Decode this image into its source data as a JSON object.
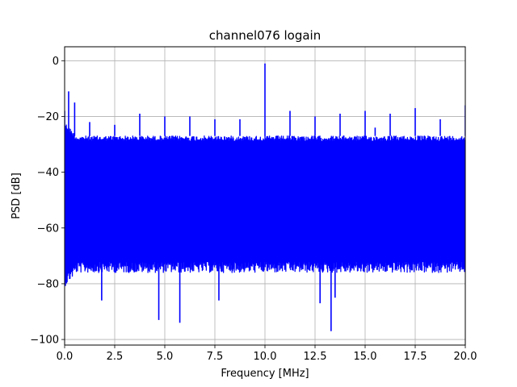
{
  "chart_data": {
    "type": "line",
    "title": "channel076 logain",
    "xlabel": "Frequency [MHz]",
    "ylabel": "PSD [dB]",
    "xlim": [
      0,
      20
    ],
    "ylim": [
      -102,
      5
    ],
    "grid": true,
    "legend": "none",
    "xticks": [
      0,
      2.5,
      5,
      7.5,
      10,
      12.5,
      15,
      17.5,
      20
    ],
    "xtick_labels": [
      "0.0",
      "2.5",
      "5.0",
      "7.5",
      "10.0",
      "12.5",
      "15.0",
      "17.5",
      "20.0"
    ],
    "yticks": [
      0,
      -20,
      -40,
      -60,
      -80,
      -100
    ],
    "ytick_labels": [
      "0",
      "−20",
      "−40",
      "−60",
      "−80",
      "−100"
    ],
    "series": [
      {
        "color": "#0000ff",
        "noise_floor": {
          "upper_envelope_db": -27,
          "lower_envelope_db": -72,
          "band_top_near_zero_db": -22,
          "band_bottom_near_zero_db": -77
        },
        "spurs": [
          {
            "x": 0.0,
            "y": -18
          },
          {
            "x": 0.2,
            "y": -11
          },
          {
            "x": 0.5,
            "y": -15
          },
          {
            "x": 1.25,
            "y": -22
          },
          {
            "x": 2.5,
            "y": -23
          },
          {
            "x": 3.75,
            "y": -19
          },
          {
            "x": 5.0,
            "y": -20
          },
          {
            "x": 6.25,
            "y": -20
          },
          {
            "x": 7.5,
            "y": -21
          },
          {
            "x": 8.75,
            "y": -21
          },
          {
            "x": 10.0,
            "y": -1
          },
          {
            "x": 11.25,
            "y": -18
          },
          {
            "x": 12.5,
            "y": -20
          },
          {
            "x": 13.75,
            "y": -19
          },
          {
            "x": 15.0,
            "y": -18
          },
          {
            "x": 15.5,
            "y": -24
          },
          {
            "x": 16.25,
            "y": -19
          },
          {
            "x": 17.5,
            "y": -17
          },
          {
            "x": 18.75,
            "y": -21
          },
          {
            "x": 20.0,
            "y": -16
          }
        ],
        "dips": [
          {
            "x": 1.85,
            "y": -86
          },
          {
            "x": 4.7,
            "y": -93
          },
          {
            "x": 5.75,
            "y": -94
          },
          {
            "x": 7.7,
            "y": -86
          },
          {
            "x": 12.75,
            "y": -87
          },
          {
            "x": 13.3,
            "y": -97
          },
          {
            "x": 13.5,
            "y": -85
          }
        ]
      }
    ]
  }
}
